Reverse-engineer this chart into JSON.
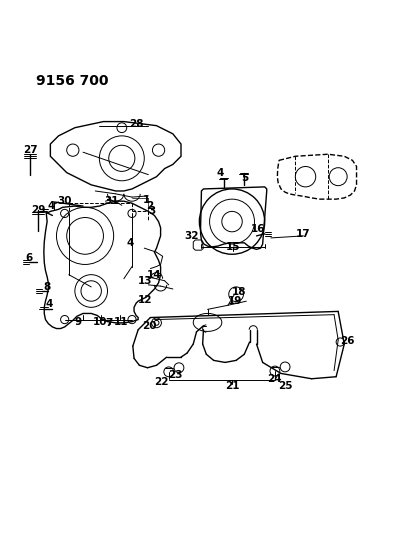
{
  "title": "9156 700",
  "bg_color": "#ffffff",
  "line_color": "#000000",
  "title_fontsize": 10,
  "label_fontsize": 7.5,
  "figsize": [
    4.11,
    5.33
  ],
  "dpi": 100
}
